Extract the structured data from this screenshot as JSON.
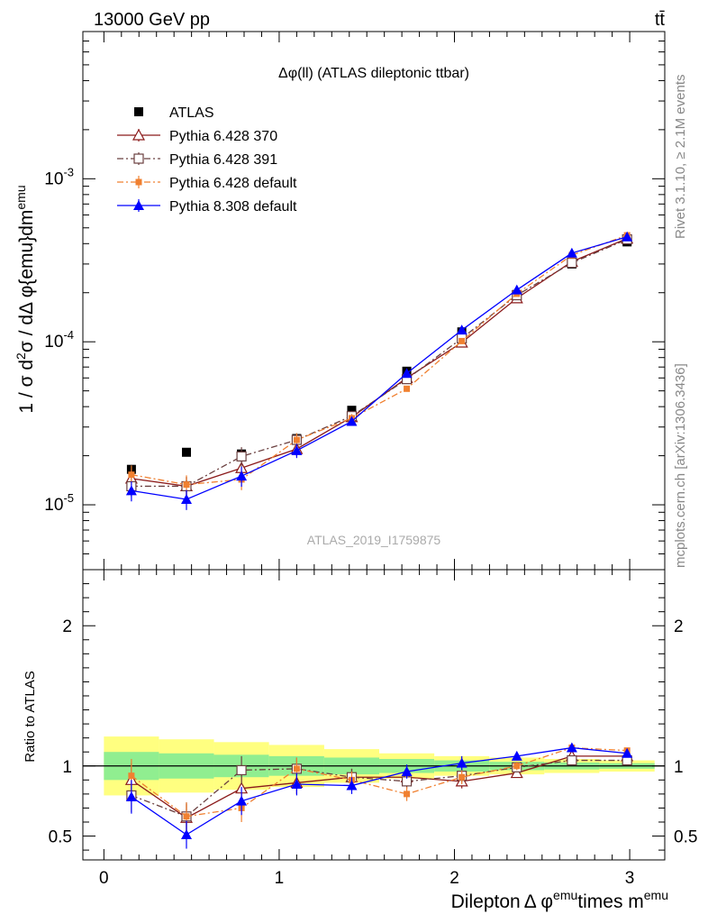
{
  "header": {
    "left": "13000 GeV pp",
    "right": "tt̄"
  },
  "side_labels": {
    "rivet": "Rivet 3.1.10, ≥ 2.1M events",
    "mcplots": "mcplots.cern.ch [arXiv:1306.3436]"
  },
  "watermark": "ATLAS_2019_I1759875",
  "colors": {
    "atlas": "#000000",
    "p370": "#8b1a1a",
    "p391": "#6b4040",
    "p6def": "#f08030",
    "p8def": "#0000ff",
    "band_inner": "#90ee90",
    "band_outer": "#ffff80"
  },
  "chart_data": [
    {
      "type": "scatter",
      "panel": "main",
      "title": "Δφ(ll) (ATLAS dileptonic ttbar)",
      "ylabel_parts": [
        "1 / σ  d",
        "2",
        "σ / dΔ φ{emu}dm",
        "emu"
      ],
      "yscale": "log",
      "ylim": [
        4e-06,
        0.008
      ],
      "xlim": [
        -0.12,
        3.2
      ],
      "x_ticks": [
        "0",
        "1",
        "2",
        "3"
      ],
      "y_ticks": [
        {
          "base": "10",
          "exp": "-5",
          "value": 1e-05
        },
        {
          "base": "10",
          "exp": "-4",
          "value": 0.0001
        },
        {
          "base": "10",
          "exp": "-3",
          "value": 0.001
        }
      ],
      "legend_position": "top-left",
      "x": [
        0.157,
        0.471,
        0.785,
        1.1,
        1.414,
        1.728,
        2.042,
        2.356,
        2.67,
        2.985
      ],
      "series": [
        {
          "name": "ATLAS",
          "key": "atlas",
          "marker": "square",
          "values": [
            1.65e-05,
            2.1e-05,
            2.05e-05,
            2.55e-05,
            3.8e-05,
            6.6e-05,
            0.000115,
            0.000195,
            0.0003,
            0.00041
          ]
        },
        {
          "name": "Pythia 6.428 370",
          "key": "p370",
          "marker": "triangle-open",
          "line": "solid",
          "values": [
            1.45e-05,
            1.3e-05,
            1.68e-05,
            2.2e-05,
            3.45e-05,
            6e-05,
            9.9e-05,
            0.000185,
            0.00031,
            0.00043
          ]
        },
        {
          "name": "Pythia 6.428 391",
          "key": "p391",
          "marker": "square-open",
          "line": "dashdot",
          "values": [
            1.3e-05,
            1.3e-05,
            1.98e-05,
            2.5e-05,
            3.5e-05,
            5.9e-05,
            0.000105,
            0.000193,
            0.000305,
            0.000425
          ]
        },
        {
          "name": "Pythia 6.428 default",
          "key": "p6def",
          "marker": "square-small",
          "line": "dashdot",
          "values": [
            1.53e-05,
            1.33e-05,
            1.43e-05,
            2.5e-05,
            3.4e-05,
            5.15e-05,
            0.000101,
            0.000197,
            0.00034,
            0.00045
          ]
        },
        {
          "name": "Pythia 8.308 default",
          "key": "p8def",
          "marker": "triangle",
          "line": "solid",
          "values": [
            1.22e-05,
            1.08e-05,
            1.5e-05,
            2.15e-05,
            3.25e-05,
            6.4e-05,
            0.000118,
            0.000208,
            0.00035,
            0.00044
          ]
        }
      ],
      "errors_relative": [
        0.14,
        0.14,
        0.14,
        0.1,
        0.06,
        0.04,
        0.04,
        0.03,
        0.03,
        0.03
      ]
    },
    {
      "type": "scatter",
      "panel": "ratio",
      "ylabel": "Ratio to ATLAS",
      "ylim": [
        0.33,
        2.4
      ],
      "xlim": [
        -0.12,
        3.2
      ],
      "xlabel_parts": [
        "Dilepton",
        "Δ φ",
        "emu",
        "times m",
        "emu"
      ],
      "x_ticks": [
        "0",
        "1",
        "2",
        "3"
      ],
      "y_ticks": [
        "0.5",
        "1",
        "2"
      ],
      "reference_line": 1,
      "x": [
        0.157,
        0.471,
        0.785,
        1.1,
        1.414,
        1.728,
        2.042,
        2.356,
        2.67,
        2.985
      ],
      "bin_edges": [
        0,
        0.314,
        0.628,
        0.942,
        1.257,
        1.571,
        1.885,
        2.199,
        2.513,
        2.827,
        3.142
      ],
      "band_inner": [
        0.1,
        0.09,
        0.08,
        0.07,
        0.06,
        0.05,
        0.04,
        0.03,
        0.025,
        0.02
      ],
      "band_outer": [
        0.21,
        0.19,
        0.17,
        0.15,
        0.12,
        0.09,
        0.07,
        0.06,
        0.05,
        0.04
      ],
      "series": [
        {
          "name": "Pythia 6.428 370",
          "key": "p370",
          "values": [
            0.9,
            0.63,
            0.84,
            0.88,
            0.92,
            0.92,
            0.89,
            0.95,
            1.07,
            1.07
          ]
        },
        {
          "name": "Pythia 6.428 391",
          "key": "p391",
          "values": [
            0.79,
            0.64,
            0.97,
            0.98,
            0.92,
            0.89,
            0.93,
            0.99,
            1.04,
            1.04
          ]
        },
        {
          "name": "Pythia 6.428 default",
          "key": "p6def",
          "values": [
            0.93,
            0.64,
            0.7,
            0.98,
            0.9,
            0.8,
            0.92,
            1.0,
            1.13,
            1.11
          ]
        },
        {
          "name": "Pythia 8.308 default",
          "key": "p8def",
          "values": [
            0.78,
            0.51,
            0.75,
            0.87,
            0.86,
            0.96,
            1.02,
            1.07,
            1.13,
            1.09
          ]
        }
      ],
      "error_sizes": [
        0.12,
        0.1,
        0.1,
        0.08,
        0.06,
        0.05,
        0.05,
        0.03,
        0.02,
        0.02
      ]
    }
  ]
}
